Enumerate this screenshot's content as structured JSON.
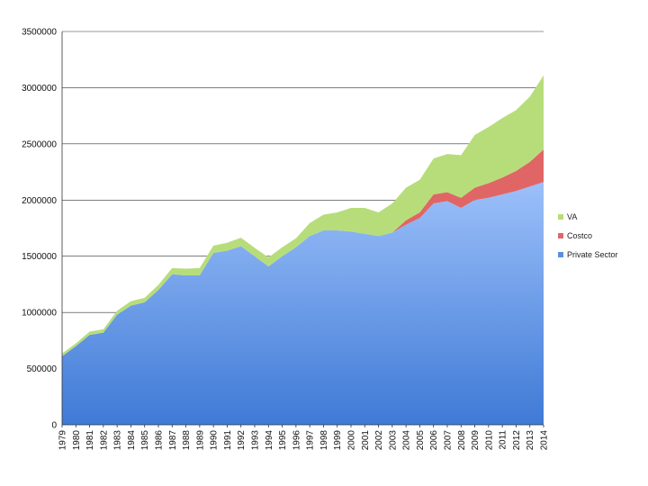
{
  "chart_data": {
    "type": "area",
    "stacked": true,
    "title": "",
    "xlabel": "",
    "ylabel": "",
    "ylim": [
      0,
      3500000
    ],
    "yticks": [
      0,
      500000,
      1000000,
      1500000,
      2000000,
      2500000,
      3000000,
      3500000
    ],
    "ytick_labels": [
      "0",
      "500000",
      "1000000",
      "1500000",
      "2000000",
      "2500000",
      "3000000",
      "3500000"
    ],
    "grid": true,
    "legend_position": "right",
    "x": [
      1979,
      1980,
      1981,
      1982,
      1983,
      1984,
      1985,
      1986,
      1987,
      1988,
      1989,
      1990,
      1991,
      1992,
      1993,
      1994,
      1995,
      1996,
      1997,
      1998,
      1999,
      2000,
      2001,
      2002,
      2003,
      2004,
      2005,
      2006,
      2007,
      2008,
      2009,
      2010,
      2011,
      2012,
      2013,
      2014
    ],
    "xtick_labels": [
      "1979",
      "1980",
      "1981",
      "1982",
      "1983",
      "1984",
      "1985",
      "1986",
      "1987",
      "1988",
      "1989",
      "1990",
      "1991",
      "1992",
      "1993",
      "1994",
      "1995",
      "1996",
      "1997",
      "1998",
      "1999",
      "2000",
      "2001",
      "2002",
      "2003",
      "2004",
      "2005",
      "2006",
      "2007",
      "2008",
      "2009",
      "2010",
      "2011",
      "2012",
      "2013",
      "2014"
    ],
    "series": [
      {
        "name": "Private Sector",
        "color": "#5b8fe0",
        "values": [
          610000,
          700000,
          800000,
          820000,
          980000,
          1060000,
          1090000,
          1200000,
          1340000,
          1330000,
          1330000,
          1530000,
          1550000,
          1590000,
          1500000,
          1410000,
          1500000,
          1580000,
          1680000,
          1730000,
          1730000,
          1720000,
          1700000,
          1680000,
          1710000,
          1780000,
          1840000,
          1970000,
          1990000,
          1930000,
          2000000,
          2020000,
          2050000,
          2080000,
          2120000,
          2160000
        ]
      },
      {
        "name": "Costco",
        "color": "#e06666",
        "values": [
          0,
          0,
          0,
          0,
          0,
          0,
          0,
          0,
          0,
          0,
          0,
          0,
          0,
          0,
          0,
          0,
          0,
          0,
          0,
          0,
          0,
          0,
          0,
          0,
          0,
          40000,
          50000,
          80000,
          80000,
          90000,
          110000,
          130000,
          150000,
          180000,
          220000,
          290000
        ]
      },
      {
        "name": "VA",
        "color": "#b7dd7a",
        "values": [
          25000,
          25000,
          30000,
          30000,
          35000,
          40000,
          40000,
          45000,
          55000,
          60000,
          65000,
          65000,
          70000,
          75000,
          75000,
          80000,
          80000,
          80000,
          115000,
          140000,
          160000,
          210000,
          230000,
          210000,
          260000,
          290000,
          290000,
          320000,
          340000,
          380000,
          470000,
          500000,
          530000,
          540000,
          580000,
          660000
        ]
      }
    ],
    "legend": [
      "VA",
      "Costco",
      "Private Sector"
    ]
  }
}
